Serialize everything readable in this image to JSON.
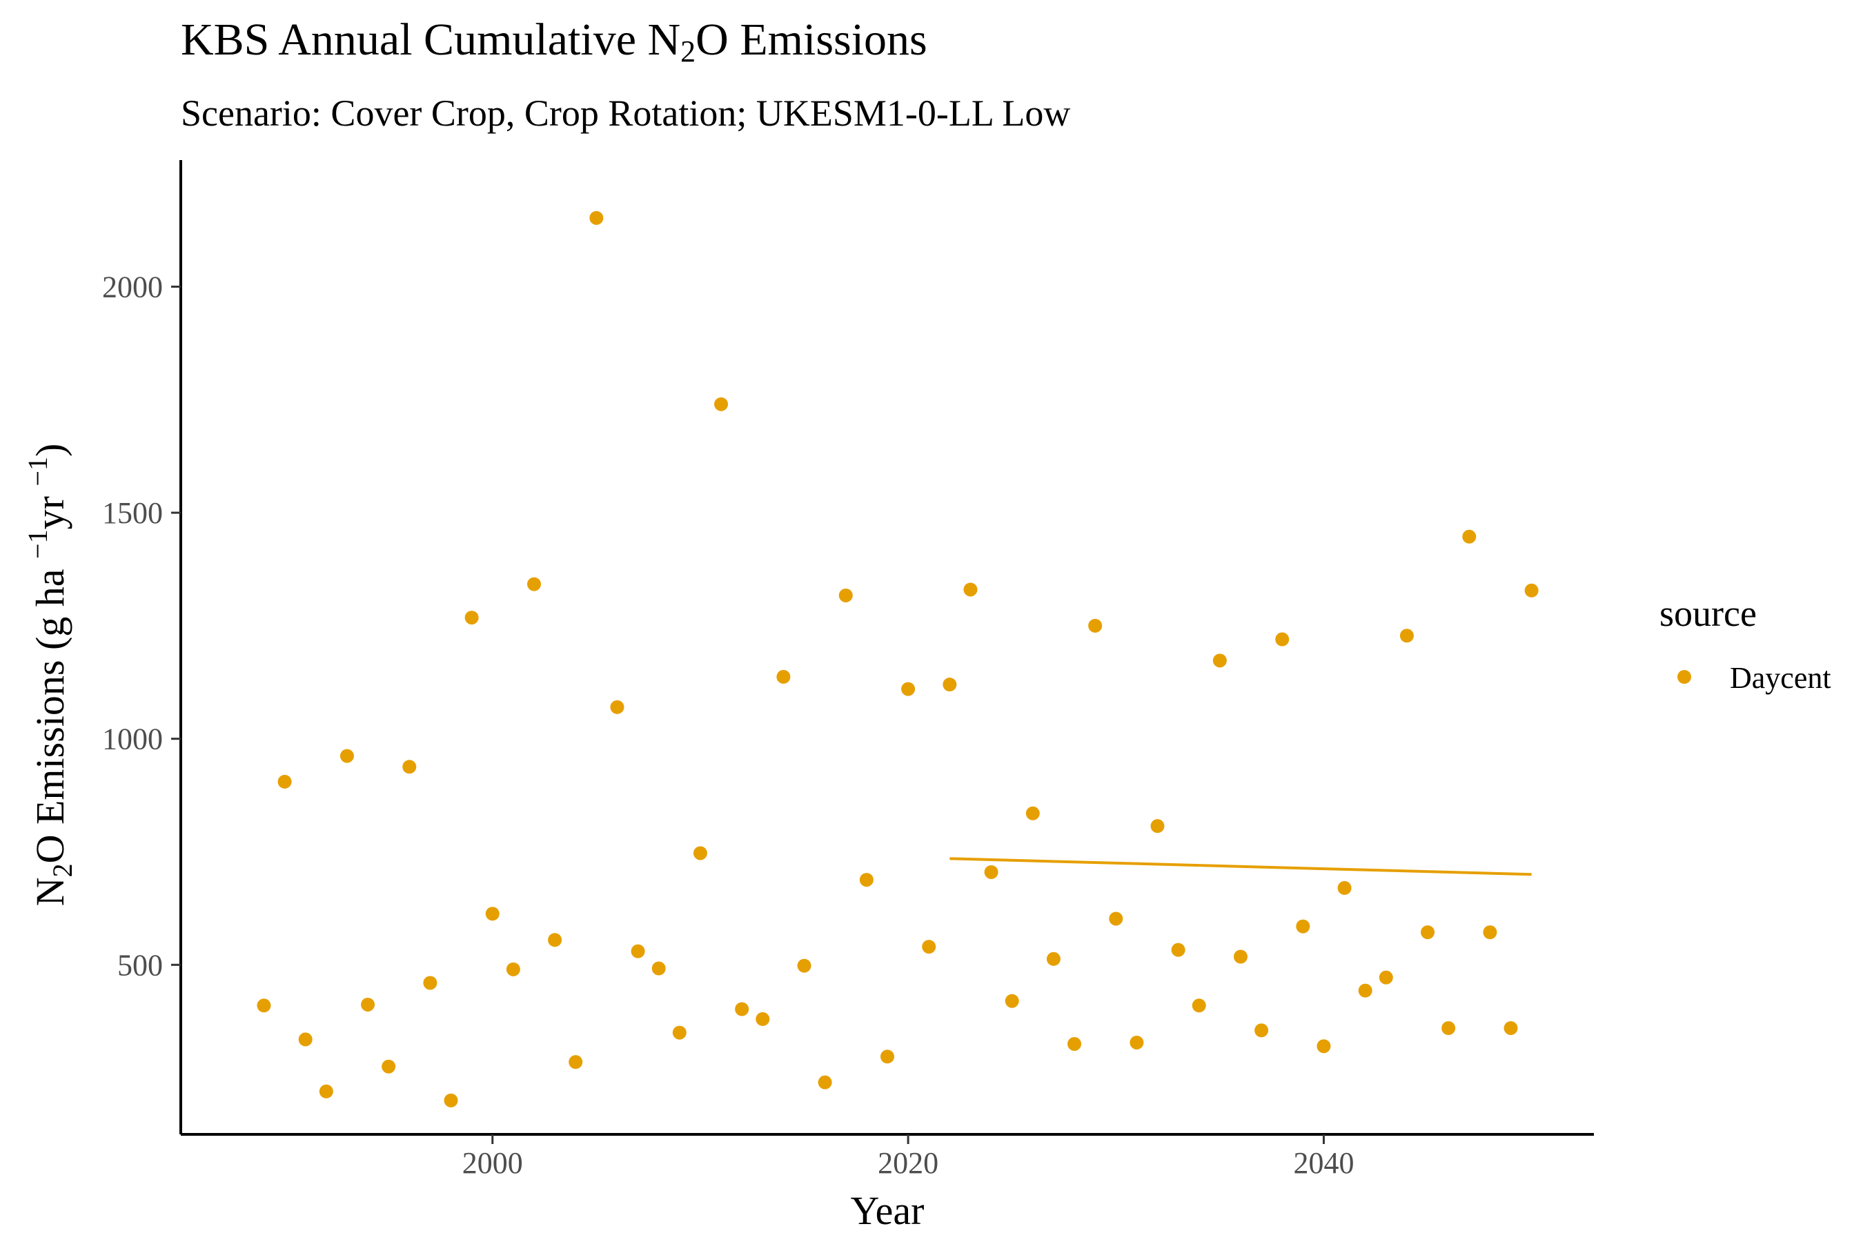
{
  "chart_data": {
    "type": "scatter",
    "title_parts": [
      "KBS Annual Cumulative N",
      "2",
      "O Emissions"
    ],
    "subtitle": "Scenario: Cover Crop, Crop Rotation; UKESM1-0-LL Low",
    "xlabel": "Year",
    "ylabel_parts": [
      "N",
      "2",
      "O Emissions (g ha ",
      "−1",
      "yr ",
      "−1",
      ")"
    ],
    "xlim": [
      1985,
      2053
    ],
    "ylim": [
      125,
      2280
    ],
    "x_ticks": [
      2000,
      2020,
      2040
    ],
    "x_tick_labels": [
      "2000",
      "2020",
      "2040"
    ],
    "y_ticks": [
      500,
      1000,
      1500,
      2000
    ],
    "y_tick_labels": [
      "500",
      "1000",
      "1500",
      "2000"
    ],
    "grid": false,
    "legend": {
      "title": "source",
      "position": "right",
      "entries": [
        "Daycent"
      ]
    },
    "series": [
      {
        "name": "Daycent",
        "color": "#E69F00",
        "x": [
          1989,
          1990,
          1991,
          1992,
          1993,
          1994,
          1995,
          1996,
          1997,
          1998,
          1999,
          2000,
          2001,
          2002,
          2003,
          2004,
          2005,
          2006,
          2007,
          2008,
          2009,
          2010,
          2011,
          2012,
          2013,
          2014,
          2015,
          2016,
          2017,
          2018,
          2019,
          2020,
          2021,
          2022,
          2023,
          2024,
          2025,
          2026,
          2027,
          2028,
          2029,
          2030,
          2031,
          2032,
          2033,
          2034,
          2035,
          2036,
          2037,
          2038,
          2039,
          2040,
          2041,
          2042,
          2043,
          2044,
          2045,
          2046,
          2047,
          2048,
          2049,
          2050
        ],
        "y": [
          410,
          905,
          335,
          220,
          962,
          412,
          275,
          938,
          460,
          200,
          1268,
          613,
          490,
          1342,
          555,
          285,
          2152,
          1070,
          530,
          492,
          350,
          747,
          1740,
          402,
          380,
          1137,
          498,
          240,
          1317,
          688,
          297,
          1110,
          540,
          1120,
          1330,
          705,
          420,
          835,
          513,
          325,
          1250,
          602,
          328,
          807,
          533,
          410,
          1173,
          518,
          355,
          1220,
          585,
          320,
          670,
          443,
          472,
          1228,
          572,
          360,
          1447,
          572,
          360,
          1328
        ]
      }
    ],
    "trend_line": {
      "color": "#E69F00",
      "x": [
        2022,
        2050
      ],
      "y": [
        735,
        700
      ]
    }
  }
}
